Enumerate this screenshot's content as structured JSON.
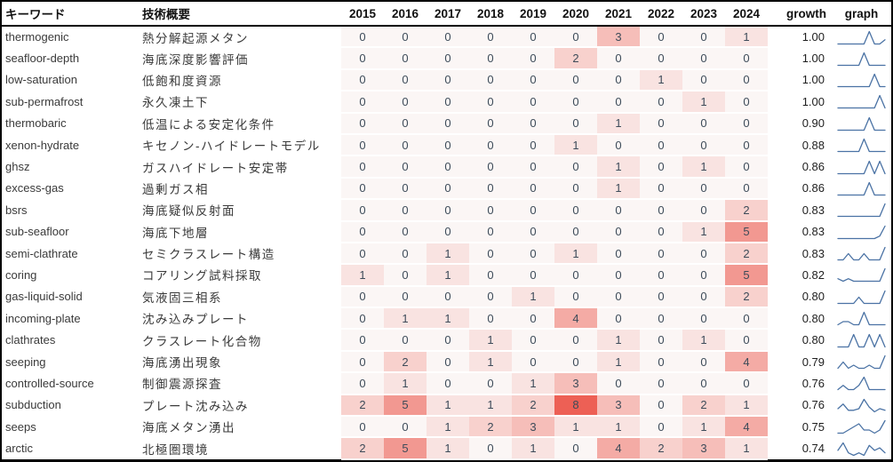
{
  "chart_data": {
    "type": "heatmap",
    "title": "",
    "legend_position": "none",
    "grid": false,
    "headers": {
      "keyword": "キーワード",
      "description": "技術概要",
      "growth": "growth",
      "graph": "graph"
    },
    "years": [
      "2015",
      "2016",
      "2017",
      "2018",
      "2019",
      "2020",
      "2021",
      "2022",
      "2023",
      "2024"
    ],
    "rows": [
      {
        "keyword": "thermogenic",
        "description": "熱分解起源メタン",
        "values": [
          0,
          0,
          0,
          0,
          0,
          0,
          3,
          0,
          0,
          1
        ],
        "growth": "1.00"
      },
      {
        "keyword": "seafloor-depth",
        "description": "海底深度影響評価",
        "values": [
          0,
          0,
          0,
          0,
          0,
          2,
          0,
          0,
          0,
          0
        ],
        "growth": "1.00"
      },
      {
        "keyword": "low-saturation",
        "description": "低飽和度資源",
        "values": [
          0,
          0,
          0,
          0,
          0,
          0,
          0,
          1,
          0,
          0
        ],
        "growth": "1.00"
      },
      {
        "keyword": "sub-permafrost",
        "description": "永久凍土下",
        "values": [
          0,
          0,
          0,
          0,
          0,
          0,
          0,
          0,
          1,
          0
        ],
        "growth": "1.00"
      },
      {
        "keyword": "thermobaric",
        "description": "低温による安定化条件",
        "values": [
          0,
          0,
          0,
          0,
          0,
          0,
          1,
          0,
          0,
          0
        ],
        "growth": "0.90"
      },
      {
        "keyword": "xenon-hydrate",
        "description": "キセノン-ハイドレートモデル",
        "values": [
          0,
          0,
          0,
          0,
          0,
          1,
          0,
          0,
          0,
          0
        ],
        "growth": "0.88"
      },
      {
        "keyword": "ghsz",
        "description": "ガスハイドレート安定帯",
        "values": [
          0,
          0,
          0,
          0,
          0,
          0,
          1,
          0,
          1,
          0
        ],
        "growth": "0.86"
      },
      {
        "keyword": "excess-gas",
        "description": "過剰ガス相",
        "values": [
          0,
          0,
          0,
          0,
          0,
          0,
          1,
          0,
          0,
          0
        ],
        "growth": "0.86"
      },
      {
        "keyword": "bsrs",
        "description": "海底疑似反射面",
        "values": [
          0,
          0,
          0,
          0,
          0,
          0,
          0,
          0,
          0,
          2
        ],
        "growth": "0.83"
      },
      {
        "keyword": "sub-seafloor",
        "description": "海底下地層",
        "values": [
          0,
          0,
          0,
          0,
          0,
          0,
          0,
          0,
          1,
          5
        ],
        "growth": "0.83"
      },
      {
        "keyword": "semi-clathrate",
        "description": "セミクラスレート構造",
        "values": [
          0,
          0,
          1,
          0,
          0,
          1,
          0,
          0,
          0,
          2
        ],
        "growth": "0.83"
      },
      {
        "keyword": "coring",
        "description": "コアリング試料採取",
        "values": [
          1,
          0,
          1,
          0,
          0,
          0,
          0,
          0,
          0,
          5
        ],
        "growth": "0.82"
      },
      {
        "keyword": "gas-liquid-solid",
        "description": "気液固三相系",
        "values": [
          0,
          0,
          0,
          0,
          1,
          0,
          0,
          0,
          0,
          2
        ],
        "growth": "0.80"
      },
      {
        "keyword": "incoming-plate",
        "description": "沈み込みプレート",
        "values": [
          0,
          1,
          1,
          0,
          0,
          4,
          0,
          0,
          0,
          0
        ],
        "growth": "0.80"
      },
      {
        "keyword": "clathrates",
        "description": "クラスレート化合物",
        "values": [
          0,
          0,
          0,
          1,
          0,
          0,
          1,
          0,
          1,
          0
        ],
        "growth": "0.80"
      },
      {
        "keyword": "seeping",
        "description": "海底湧出現象",
        "values": [
          0,
          2,
          0,
          1,
          0,
          0,
          1,
          0,
          0,
          4
        ],
        "growth": "0.79"
      },
      {
        "keyword": "controlled-source",
        "description": "制御震源探査",
        "values": [
          0,
          1,
          0,
          0,
          1,
          3,
          0,
          0,
          0,
          0
        ],
        "growth": "0.76"
      },
      {
        "keyword": "subduction",
        "description": "プレート沈み込み",
        "values": [
          2,
          5,
          1,
          1,
          2,
          8,
          3,
          0,
          2,
          1
        ],
        "growth": "0.76"
      },
      {
        "keyword": "seeps",
        "description": "海底メタン湧出",
        "values": [
          0,
          0,
          1,
          2,
          3,
          1,
          1,
          0,
          1,
          4
        ],
        "growth": "0.75"
      },
      {
        "keyword": "arctic",
        "description": "北極圏環境",
        "values": [
          2,
          5,
          1,
          0,
          1,
          0,
          4,
          2,
          3,
          1
        ],
        "growth": "0.74"
      }
    ],
    "color_scale": {
      "vmin": 0,
      "vmax": 8,
      "min_color": "#fbf6f5",
      "max_color": "#ed6055"
    },
    "sparkline": {
      "color": "#4a72a4",
      "normalization": "per-row-max"
    }
  },
  "colors": {
    "border": "#000000",
    "header_text": "#111111",
    "keyword_text": "#3a3a3a",
    "cell_value_text": "#3d4b59",
    "growth_text": "#1e1e1e"
  }
}
